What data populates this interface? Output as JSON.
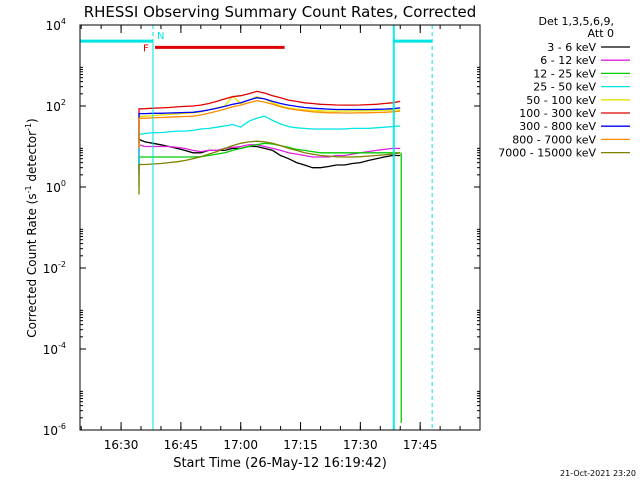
{
  "chart_data": {
    "type": "line",
    "title": "RHESSI Observing Summary Count Rates, Corrected",
    "ylabel_main": "Corrected Count Rate (s",
    "ylabel_sup1": "-1",
    "ylabel_mid": " detector",
    "ylabel_sup2": "-1",
    "ylabel_end": ")",
    "xlabel": "Start Time (26-May-12 16:19:42)",
    "footer_timestamp": "21-Oct-2021 23:20",
    "legend_header": [
      "Det 1,3,5,6,9,",
      "Att 0"
    ],
    "y_scale": "log",
    "ylim": [
      1e-06,
      10000
    ],
    "xlim": [
      "16:19:42",
      "18:00:00"
    ],
    "y_ticks": [
      {
        "value": 1e-06,
        "base": "10",
        "exp": "-6"
      },
      {
        "value": 0.0001,
        "base": "10",
        "exp": "-4"
      },
      {
        "value": 0.01,
        "base": "10",
        "exp": "-2"
      },
      {
        "value": 1,
        "base": "10",
        "exp": "0"
      },
      {
        "value": 100,
        "base": "10",
        "exp": "2"
      },
      {
        "value": 10000,
        "base": "10",
        "exp": "4"
      }
    ],
    "x_ticks": [
      "16:30",
      "16:45",
      "17:00",
      "17:15",
      "17:30",
      "17:45"
    ],
    "x": [
      "16:34:30",
      "16:36",
      "16:38",
      "16:40",
      "16:42",
      "16:44",
      "16:46",
      "16:48",
      "16:50",
      "16:52",
      "16:54",
      "16:56",
      "16:58",
      "17:00",
      "17:02",
      "17:04",
      "17:06",
      "17:08",
      "17:10",
      "17:12",
      "17:14",
      "17:16",
      "17:18",
      "17:20",
      "17:22",
      "17:24",
      "17:26",
      "17:28",
      "17:30",
      "17:32",
      "17:34",
      "17:36",
      "17:38",
      "17:40"
    ],
    "series": [
      {
        "name": "3 - 6 keV",
        "color": "#000000",
        "values": [
          15,
          13,
          12,
          11,
          10,
          9,
          8,
          7,
          7,
          8,
          8,
          8,
          9,
          9,
          10,
          10,
          9,
          8,
          6,
          5,
          4,
          3.5,
          3,
          3,
          3.2,
          3.5,
          3.5,
          3.8,
          4,
          4.5,
          5,
          5.5,
          6,
          6
        ]
      },
      {
        "name": "6 - 12 keV",
        "color": "#e020e0",
        "values": [
          11,
          10,
          10,
          10,
          10,
          9.5,
          9,
          8,
          7.5,
          8,
          8,
          9,
          9.5,
          10,
          11,
          11,
          10,
          9,
          8,
          7,
          6.5,
          6,
          5.5,
          5.5,
          5.5,
          6,
          6,
          6.5,
          7,
          7.5,
          8,
          8.5,
          9,
          9
        ]
      },
      {
        "name": "12 - 25 keV",
        "color": "#00cc00",
        "values": [
          5.5,
          5.5,
          5.5,
          5.5,
          5.5,
          5.5,
          5.5,
          5.5,
          5.6,
          6,
          6.5,
          7,
          8,
          9,
          10,
          11,
          12,
          11.5,
          10.5,
          9.5,
          8.5,
          8,
          7.5,
          7,
          7,
          7,
          7,
          7,
          7,
          7,
          7,
          7,
          7,
          7
        ]
      },
      {
        "name": "25 - 50 keV",
        "color": "#00e5e5",
        "values": [
          20,
          21,
          22,
          22,
          23,
          24,
          24,
          25,
          27,
          28,
          30,
          32,
          35,
          30,
          42,
          50,
          56,
          44,
          36,
          31,
          29,
          28,
          27,
          27,
          27,
          27,
          27,
          28,
          28,
          28,
          29,
          30,
          31,
          32
        ]
      },
      {
        "name": "50 - 100 keV",
        "color": "#e5e500",
        "values": [
          55,
          56,
          58,
          60,
          62,
          64,
          66,
          68,
          72,
          80,
          90,
          100,
          175,
          115,
          140,
          170,
          150,
          120,
          100,
          90,
          84,
          80,
          78,
          76,
          75,
          75,
          75,
          76,
          76,
          76,
          77,
          78,
          79,
          80
        ]
      },
      {
        "name": "100 - 300 keV",
        "color": "#e00000",
        "values": [
          85,
          86,
          88,
          90,
          92,
          95,
          98,
          100,
          105,
          115,
          130,
          150,
          170,
          180,
          200,
          230,
          210,
          180,
          160,
          140,
          130,
          120,
          115,
          110,
          108,
          106,
          105,
          105,
          106,
          108,
          110,
          115,
          120,
          130
        ]
      },
      {
        "name": "300 - 800 keV",
        "color": "#0000ff",
        "values": [
          65,
          65,
          66,
          66,
          67,
          68,
          69,
          70,
          74,
          80,
          88,
          98,
          110,
          120,
          140,
          160,
          150,
          130,
          115,
          105,
          98,
          92,
          88,
          86,
          84,
          82,
          82,
          82,
          82,
          82,
          83,
          84,
          86,
          90
        ]
      },
      {
        "name": "800 - 7000 keV",
        "color": "#ff8c00",
        "values": [
          50,
          50,
          51,
          52,
          53,
          54,
          55,
          56,
          60,
          66,
          74,
          84,
          96,
          105,
          120,
          135,
          125,
          110,
          96,
          86,
          80,
          76,
          72,
          70,
          68,
          68,
          67,
          67,
          68,
          68,
          69,
          70,
          72,
          75
        ]
      },
      {
        "name": "7000 - 15000 keV",
        "color": "#808000",
        "values": [
          3.6,
          3.6,
          3.7,
          3.8,
          4,
          4.2,
          4.5,
          5,
          5.6,
          6.5,
          7.5,
          9,
          10.5,
          12,
          13,
          13.5,
          13,
          12,
          10.5,
          9,
          8,
          7,
          6.5,
          6,
          5.8,
          5.6,
          5.5,
          5.5,
          5.6,
          5.8,
          6,
          6.2,
          6.5,
          7
        ]
      }
    ],
    "attenuator_flag": {
      "label": "F",
      "color": "#e00000",
      "start": "16:38:30",
      "end": "17:11:00",
      "value": 2800
    },
    "night_flag": {
      "label": "N",
      "color": "#00e5e5",
      "value": 4000,
      "segments": [
        [
          "16:19:42",
          "16:38:00"
        ],
        [
          "17:38:30",
          "17:48:00"
        ]
      ],
      "boundaries": [
        "16:38:00",
        "17:38:30",
        "17:48:00"
      ]
    }
  }
}
